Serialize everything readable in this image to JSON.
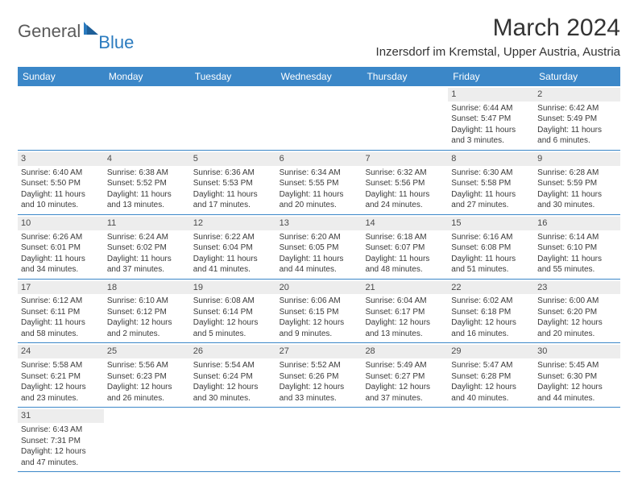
{
  "logo": {
    "text1": "General",
    "text2": "Blue"
  },
  "title": "March 2024",
  "location": "Inzersdorf im Kremstal, Upper Austria, Austria",
  "colors": {
    "header_bg": "#3b87c8",
    "header_text": "#ffffff",
    "daynum_bg": "#ededed",
    "row_border": "#3b87c8",
    "body_text": "#3a3a3a"
  },
  "weekdays": [
    "Sunday",
    "Monday",
    "Tuesday",
    "Wednesday",
    "Thursday",
    "Friday",
    "Saturday"
  ],
  "weeks": [
    [
      null,
      null,
      null,
      null,
      null,
      {
        "n": "1",
        "sunrise": "6:44 AM",
        "sunset": "5:47 PM",
        "dl1": "Daylight: 11 hours",
        "dl2": "and 3 minutes."
      },
      {
        "n": "2",
        "sunrise": "6:42 AM",
        "sunset": "5:49 PM",
        "dl1": "Daylight: 11 hours",
        "dl2": "and 6 minutes."
      }
    ],
    [
      {
        "n": "3",
        "sunrise": "6:40 AM",
        "sunset": "5:50 PM",
        "dl1": "Daylight: 11 hours",
        "dl2": "and 10 minutes."
      },
      {
        "n": "4",
        "sunrise": "6:38 AM",
        "sunset": "5:52 PM",
        "dl1": "Daylight: 11 hours",
        "dl2": "and 13 minutes."
      },
      {
        "n": "5",
        "sunrise": "6:36 AM",
        "sunset": "5:53 PM",
        "dl1": "Daylight: 11 hours",
        "dl2": "and 17 minutes."
      },
      {
        "n": "6",
        "sunrise": "6:34 AM",
        "sunset": "5:55 PM",
        "dl1": "Daylight: 11 hours",
        "dl2": "and 20 minutes."
      },
      {
        "n": "7",
        "sunrise": "6:32 AM",
        "sunset": "5:56 PM",
        "dl1": "Daylight: 11 hours",
        "dl2": "and 24 minutes."
      },
      {
        "n": "8",
        "sunrise": "6:30 AM",
        "sunset": "5:58 PM",
        "dl1": "Daylight: 11 hours",
        "dl2": "and 27 minutes."
      },
      {
        "n": "9",
        "sunrise": "6:28 AM",
        "sunset": "5:59 PM",
        "dl1": "Daylight: 11 hours",
        "dl2": "and 30 minutes."
      }
    ],
    [
      {
        "n": "10",
        "sunrise": "6:26 AM",
        "sunset": "6:01 PM",
        "dl1": "Daylight: 11 hours",
        "dl2": "and 34 minutes."
      },
      {
        "n": "11",
        "sunrise": "6:24 AM",
        "sunset": "6:02 PM",
        "dl1": "Daylight: 11 hours",
        "dl2": "and 37 minutes."
      },
      {
        "n": "12",
        "sunrise": "6:22 AM",
        "sunset": "6:04 PM",
        "dl1": "Daylight: 11 hours",
        "dl2": "and 41 minutes."
      },
      {
        "n": "13",
        "sunrise": "6:20 AM",
        "sunset": "6:05 PM",
        "dl1": "Daylight: 11 hours",
        "dl2": "and 44 minutes."
      },
      {
        "n": "14",
        "sunrise": "6:18 AM",
        "sunset": "6:07 PM",
        "dl1": "Daylight: 11 hours",
        "dl2": "and 48 minutes."
      },
      {
        "n": "15",
        "sunrise": "6:16 AM",
        "sunset": "6:08 PM",
        "dl1": "Daylight: 11 hours",
        "dl2": "and 51 minutes."
      },
      {
        "n": "16",
        "sunrise": "6:14 AM",
        "sunset": "6:10 PM",
        "dl1": "Daylight: 11 hours",
        "dl2": "and 55 minutes."
      }
    ],
    [
      {
        "n": "17",
        "sunrise": "6:12 AM",
        "sunset": "6:11 PM",
        "dl1": "Daylight: 11 hours",
        "dl2": "and 58 minutes."
      },
      {
        "n": "18",
        "sunrise": "6:10 AM",
        "sunset": "6:12 PM",
        "dl1": "Daylight: 12 hours",
        "dl2": "and 2 minutes."
      },
      {
        "n": "19",
        "sunrise": "6:08 AM",
        "sunset": "6:14 PM",
        "dl1": "Daylight: 12 hours",
        "dl2": "and 5 minutes."
      },
      {
        "n": "20",
        "sunrise": "6:06 AM",
        "sunset": "6:15 PM",
        "dl1": "Daylight: 12 hours",
        "dl2": "and 9 minutes."
      },
      {
        "n": "21",
        "sunrise": "6:04 AM",
        "sunset": "6:17 PM",
        "dl1": "Daylight: 12 hours",
        "dl2": "and 13 minutes."
      },
      {
        "n": "22",
        "sunrise": "6:02 AM",
        "sunset": "6:18 PM",
        "dl1": "Daylight: 12 hours",
        "dl2": "and 16 minutes."
      },
      {
        "n": "23",
        "sunrise": "6:00 AM",
        "sunset": "6:20 PM",
        "dl1": "Daylight: 12 hours",
        "dl2": "and 20 minutes."
      }
    ],
    [
      {
        "n": "24",
        "sunrise": "5:58 AM",
        "sunset": "6:21 PM",
        "dl1": "Daylight: 12 hours",
        "dl2": "and 23 minutes."
      },
      {
        "n": "25",
        "sunrise": "5:56 AM",
        "sunset": "6:23 PM",
        "dl1": "Daylight: 12 hours",
        "dl2": "and 26 minutes."
      },
      {
        "n": "26",
        "sunrise": "5:54 AM",
        "sunset": "6:24 PM",
        "dl1": "Daylight: 12 hours",
        "dl2": "and 30 minutes."
      },
      {
        "n": "27",
        "sunrise": "5:52 AM",
        "sunset": "6:26 PM",
        "dl1": "Daylight: 12 hours",
        "dl2": "and 33 minutes."
      },
      {
        "n": "28",
        "sunrise": "5:49 AM",
        "sunset": "6:27 PM",
        "dl1": "Daylight: 12 hours",
        "dl2": "and 37 minutes."
      },
      {
        "n": "29",
        "sunrise": "5:47 AM",
        "sunset": "6:28 PM",
        "dl1": "Daylight: 12 hours",
        "dl2": "and 40 minutes."
      },
      {
        "n": "30",
        "sunrise": "5:45 AM",
        "sunset": "6:30 PM",
        "dl1": "Daylight: 12 hours",
        "dl2": "and 44 minutes."
      }
    ],
    [
      {
        "n": "31",
        "sunrise": "6:43 AM",
        "sunset": "7:31 PM",
        "dl1": "Daylight: 12 hours",
        "dl2": "and 47 minutes."
      },
      null,
      null,
      null,
      null,
      null,
      null
    ]
  ]
}
